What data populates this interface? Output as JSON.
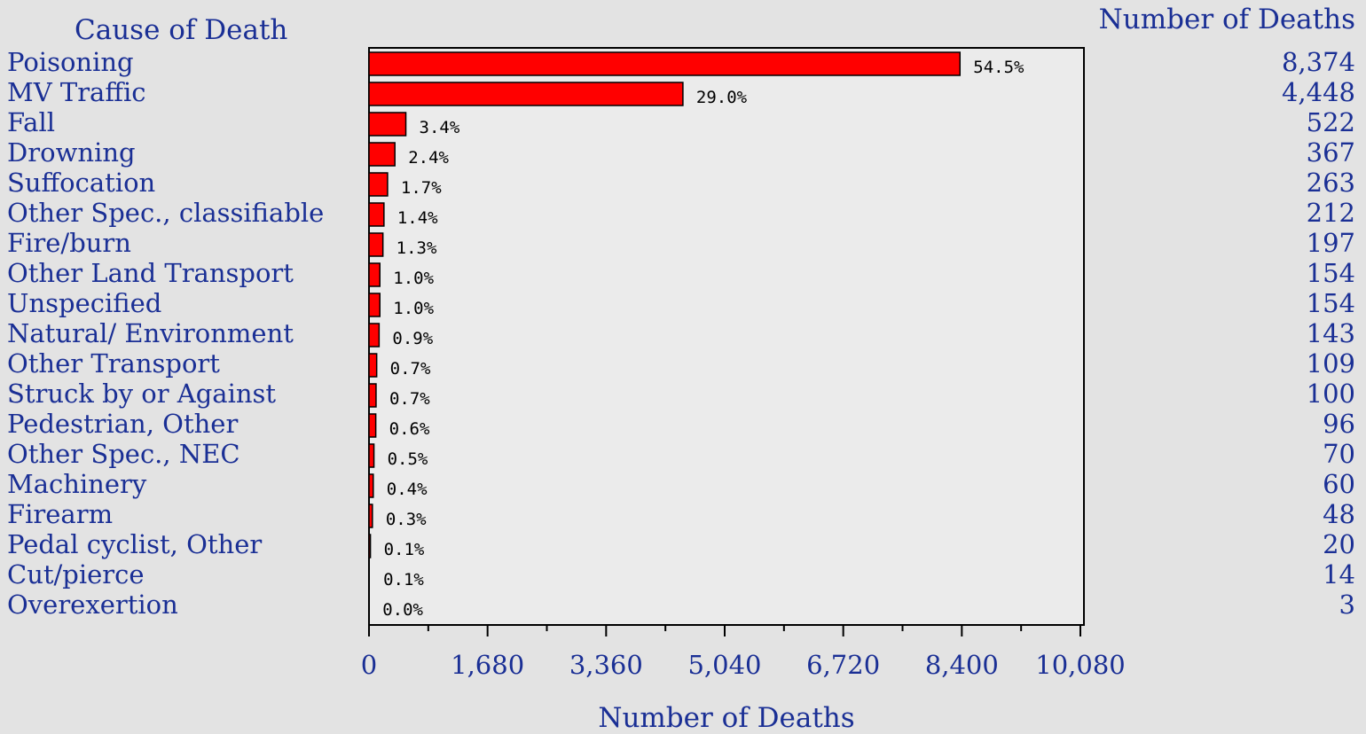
{
  "chart_data": {
    "type": "bar",
    "orientation": "horizontal",
    "row_header": "Cause of Death",
    "value_header": "Number of Deaths",
    "xlabel": "Number of Deaths",
    "xlim": [
      0,
      10080
    ],
    "xticks": [
      0,
      1680,
      3360,
      5040,
      6720,
      8400,
      10080
    ],
    "xtick_labels": [
      "0",
      "1,680",
      "3,360",
      "5,040",
      "6,720",
      "8,400",
      "10,080"
    ],
    "categories": [
      "Poisoning",
      "MV Traffic",
      "Fall",
      "Drowning",
      "Suffocation",
      "Other Spec., classifiable",
      "Fire/burn",
      "Other Land Transport",
      "Unspecified",
      "Natural/ Environment",
      "Other Transport",
      "Struck by or Against",
      "Pedestrian, Other",
      "Other Spec., NEC",
      "Machinery",
      "Firearm",
      "Pedal cyclist, Other",
      "Cut/pierce",
      "Overexertion"
    ],
    "values": [
      8374,
      4448,
      522,
      367,
      263,
      212,
      197,
      154,
      154,
      143,
      109,
      100,
      96,
      70,
      60,
      48,
      20,
      14,
      3
    ],
    "value_labels": [
      "8,374",
      "4,448",
      "522",
      "367",
      "263",
      "212",
      "197",
      "154",
      "154",
      "143",
      "109",
      "100",
      "96",
      "70",
      "60",
      "48",
      "20",
      "14",
      "3"
    ],
    "percent_labels": [
      "54.5%",
      "29.0%",
      "3.4%",
      "2.4%",
      "1.7%",
      "1.4%",
      "1.3%",
      "1.0%",
      "1.0%",
      "0.9%",
      "0.7%",
      "0.7%",
      "0.6%",
      "0.5%",
      "0.4%",
      "0.3%",
      "0.1%",
      "0.1%",
      "0.0%"
    ],
    "bar_color": "#ff0000",
    "text_color": "#1a2f95",
    "plot_background": "#ebebeb",
    "page_background": "#e3e3e3",
    "grid": false,
    "legend": "none"
  }
}
